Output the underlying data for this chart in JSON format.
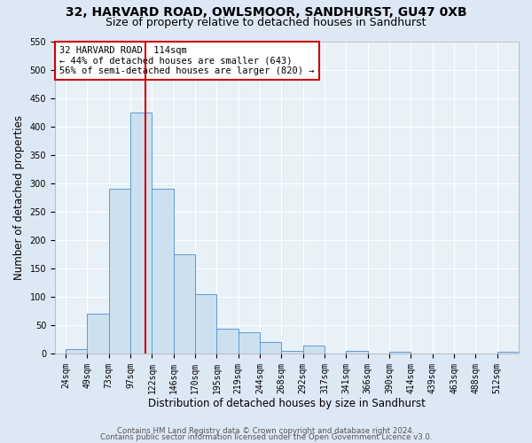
{
  "title1": "32, HARVARD ROAD, OWLSMOOR, SANDHURST, GU47 0XB",
  "title2": "Size of property relative to detached houses in Sandhurst",
  "xlabel": "Distribution of detached houses by size in Sandhurst",
  "ylabel": "Number of detached properties",
  "bin_labels": [
    "24sqm",
    "49sqm",
    "73sqm",
    "97sqm",
    "122sqm",
    "146sqm",
    "170sqm",
    "195sqm",
    "219sqm",
    "244sqm",
    "268sqm",
    "292sqm",
    "317sqm",
    "341sqm",
    "366sqm",
    "390sqm",
    "414sqm",
    "439sqm",
    "463sqm",
    "488sqm",
    "512sqm"
  ],
  "bar_values": [
    8,
    70,
    290,
    425,
    290,
    175,
    105,
    43,
    38,
    20,
    5,
    14,
    0,
    5,
    0,
    3,
    0,
    0,
    0,
    0,
    3
  ],
  "bar_color": "#cce0f0",
  "bar_edge_color": "#5b9bd5",
  "vline_color": "#cc0000",
  "annotation_title": "32 HARVARD ROAD: 114sqm",
  "annotation_line1": "← 44% of detached houses are smaller (643)",
  "annotation_line2": "56% of semi-detached houses are larger (820) →",
  "annotation_box_color": "#cc0000",
  "ylim": [
    0,
    550
  ],
  "yticks": [
    0,
    50,
    100,
    150,
    200,
    250,
    300,
    350,
    400,
    450,
    500,
    550
  ],
  "footer1": "Contains HM Land Registry data © Crown copyright and database right 2024.",
  "footer2": "Contains public sector information licensed under the Open Government Licence v3.0.",
  "bg_color": "#dde8f5",
  "plot_bg_color": "#e8f1f8",
  "grid_color": "#ffffff",
  "title1_fontsize": 10,
  "title2_fontsize": 9,
  "tick_fontsize": 7,
  "axis_label_fontsize": 8.5
}
